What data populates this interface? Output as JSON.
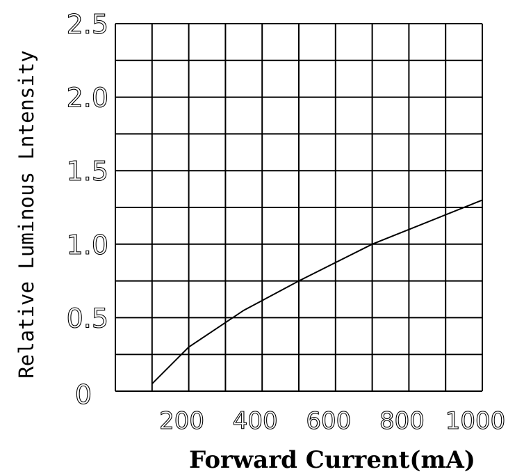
{
  "chart_data": {
    "type": "line",
    "xlabel": "Forward Current(mA)",
    "ylabel": "Relative Luminous Lntensity",
    "xlim": [
      0,
      1000
    ],
    "ylim": [
      0,
      2.5
    ],
    "x_ticks": [
      "200",
      "400",
      "600",
      "800",
      "1000"
    ],
    "y_ticks": [
      "0",
      "0.5",
      "1.0",
      "1.5",
      "2.0",
      "2.5"
    ],
    "grid": true,
    "series": [
      {
        "x": [
          100,
          200,
          350,
          500,
          700,
          1000
        ],
        "values": [
          0.05,
          0.3,
          0.55,
          0.75,
          1.0,
          1.3
        ]
      }
    ]
  }
}
